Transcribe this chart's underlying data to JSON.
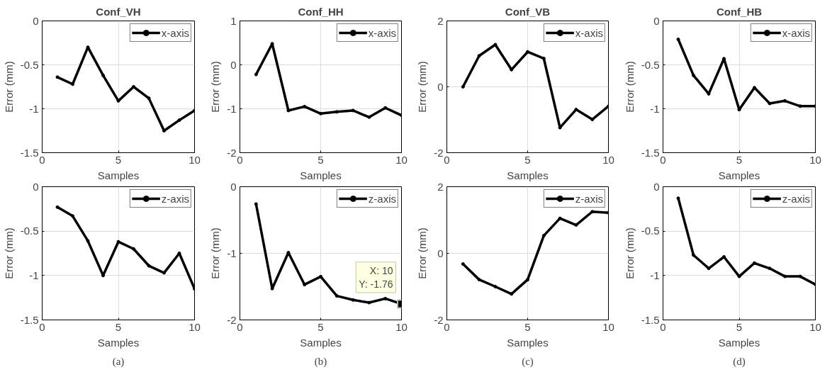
{
  "chart_data": [
    {
      "type": "line",
      "title": "Conf_VH",
      "xlabel": "Samples",
      "ylabel": "Error (mm)",
      "x": [
        1,
        2,
        3,
        4,
        5,
        6,
        7,
        8,
        9,
        10
      ],
      "xlim": [
        0,
        10
      ],
      "xticks": [
        0,
        5,
        10
      ],
      "ylim": [
        -1.5,
        0
      ],
      "yticks": [
        -1.5,
        -1,
        -0.5,
        0
      ],
      "grid": true,
      "legend": "top right",
      "marker": "circle",
      "series": [
        {
          "name": "x-axis",
          "color": "#000000",
          "values": [
            -0.64,
            -0.72,
            -0.3,
            -0.62,
            -0.91,
            -0.75,
            -0.88,
            -1.25,
            -1.13,
            -1.02
          ]
        }
      ]
    },
    {
      "type": "line",
      "title": "Conf_HH",
      "xlabel": "Samples",
      "ylabel": "Error (mm)",
      "x": [
        1,
        2,
        3,
        4,
        5,
        6,
        7,
        8,
        9,
        10
      ],
      "xlim": [
        0,
        10
      ],
      "xticks": [
        0,
        5,
        10
      ],
      "ylim": [
        -2,
        1
      ],
      "yticks": [
        -2,
        -1,
        0,
        1
      ],
      "grid": true,
      "legend": "top right",
      "marker": "circle",
      "series": [
        {
          "name": "x-axis",
          "color": "#000000",
          "values": [
            -0.22,
            0.48,
            -1.04,
            -0.95,
            -1.11,
            -1.07,
            -1.04,
            -1.19,
            -0.98,
            -1.15
          ]
        }
      ]
    },
    {
      "type": "line",
      "title": "Conf_VB",
      "xlabel": "Samples",
      "ylabel": "Error (mm)",
      "x": [
        1,
        2,
        3,
        4,
        5,
        6,
        7,
        8,
        9,
        10
      ],
      "xlim": [
        0,
        10
      ],
      "xticks": [
        0,
        5,
        10
      ],
      "ylim": [
        -2,
        2
      ],
      "yticks": [
        -2,
        0,
        2
      ],
      "grid": true,
      "legend": "top right",
      "marker": "circle",
      "series": [
        {
          "name": "x-axis",
          "color": "#000000",
          "values": [
            0.0,
            0.94,
            1.28,
            0.52,
            1.06,
            0.86,
            -1.24,
            -0.69,
            -0.99,
            -0.59
          ]
        }
      ]
    },
    {
      "type": "line",
      "title": "Conf_HB",
      "xlabel": "Samples",
      "ylabel": "Error (mm)",
      "x": [
        1,
        2,
        3,
        4,
        5,
        6,
        7,
        8,
        9,
        10
      ],
      "xlim": [
        0,
        10
      ],
      "xticks": [
        0,
        5,
        10
      ],
      "ylim": [
        -1.5,
        0
      ],
      "yticks": [
        -1.5,
        -1,
        -0.5,
        0
      ],
      "grid": true,
      "legend": "top right",
      "marker": "circle",
      "series": [
        {
          "name": "x-axis",
          "color": "#000000",
          "values": [
            -0.21,
            -0.62,
            -0.83,
            -0.43,
            -1.01,
            -0.76,
            -0.94,
            -0.91,
            -0.97,
            -0.97
          ]
        }
      ]
    },
    {
      "type": "line",
      "xlabel": "Samples",
      "ylabel": "Error (mm)",
      "x": [
        1,
        2,
        3,
        4,
        5,
        6,
        7,
        8,
        9,
        10
      ],
      "xlim": [
        0,
        10
      ],
      "xticks": [
        0,
        5,
        10
      ],
      "ylim": [
        -1.5,
        0
      ],
      "yticks": [
        -1.5,
        -1,
        -0.5,
        0
      ],
      "grid": true,
      "legend": "top right",
      "marker": "circle",
      "annotations": [
        "(a)"
      ],
      "series": [
        {
          "name": "z-axis",
          "color": "#000000",
          "values": [
            -0.23,
            -0.33,
            -0.61,
            -1.0,
            -0.62,
            -0.7,
            -0.89,
            -0.97,
            -0.75,
            -1.15
          ]
        }
      ]
    },
    {
      "type": "line",
      "xlabel": "Samples",
      "ylabel": "Error (mm)",
      "x": [
        1,
        2,
        3,
        4,
        5,
        6,
        7,
        8,
        9,
        10
      ],
      "xlim": [
        0,
        10
      ],
      "xticks": [
        0,
        5,
        10
      ],
      "ylim": [
        -2,
        0
      ],
      "yticks": [
        -2,
        -1,
        0
      ],
      "grid": true,
      "legend": "top right",
      "marker": "circle",
      "annotations": [
        {
          "text": "X: 10\nY: -1.76",
          "x": 10,
          "y": -1.76
        },
        "(b)"
      ],
      "series": [
        {
          "name": "z-axis",
          "color": "#000000",
          "values": [
            -0.26,
            -1.53,
            -0.99,
            -1.47,
            -1.35,
            -1.64,
            -1.7,
            -1.74,
            -1.68,
            -1.76
          ]
        }
      ]
    },
    {
      "type": "line",
      "xlabel": "Samples",
      "ylabel": "Error (mm)",
      "x": [
        1,
        2,
        3,
        4,
        5,
        6,
        7,
        8,
        9,
        10
      ],
      "xlim": [
        0,
        10
      ],
      "xticks": [
        0,
        5,
        10
      ],
      "ylim": [
        -2,
        2
      ],
      "yticks": [
        -2,
        0,
        2
      ],
      "grid": true,
      "legend": "top right",
      "marker": "circle",
      "annotations": [
        "(c)"
      ],
      "series": [
        {
          "name": "z-axis",
          "color": "#000000",
          "values": [
            -0.32,
            -0.79,
            -1.0,
            -1.22,
            -0.79,
            0.53,
            1.05,
            0.85,
            1.25,
            1.22
          ]
        }
      ]
    },
    {
      "type": "line",
      "xlabel": "Samples",
      "ylabel": "Error (mm)",
      "x": [
        1,
        2,
        3,
        4,
        5,
        6,
        7,
        8,
        9,
        10
      ],
      "xlim": [
        0,
        10
      ],
      "xticks": [
        0,
        5,
        10
      ],
      "ylim": [
        -1.5,
        0
      ],
      "yticks": [
        -1.5,
        -1,
        -0.5,
        0
      ],
      "grid": true,
      "legend": "top right",
      "marker": "circle",
      "annotations": [
        "(d)"
      ],
      "series": [
        {
          "name": "z-axis",
          "color": "#000000",
          "values": [
            -0.13,
            -0.77,
            -0.92,
            -0.79,
            -1.01,
            -0.86,
            -0.92,
            -1.01,
            -1.01,
            -1.1
          ]
        }
      ]
    }
  ]
}
